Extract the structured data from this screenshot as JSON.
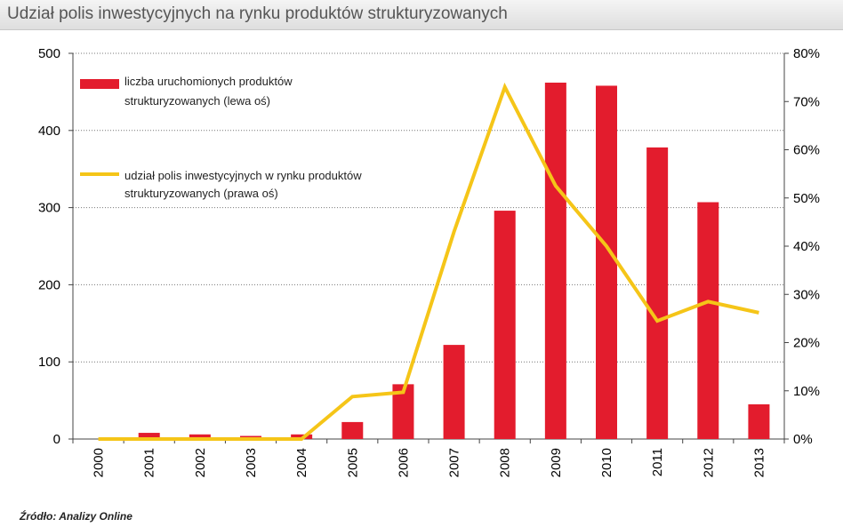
{
  "header": {
    "title": "Udział polis inwestycyjnych na rynku produktów strukturyzowanych"
  },
  "footer": {
    "source": "Źródło: Analizy Online"
  },
  "colors": {
    "bars": "#e31c2d",
    "line": "#f5c518",
    "header_bg": "#e6e6e6",
    "title": "#555555"
  },
  "chart_data": {
    "type": "bar",
    "title": "Udział polis inwestycyjnych na rynku produktów strukturyzowanych",
    "categories": [
      "2000",
      "2001",
      "2002",
      "2003",
      "2004",
      "2005",
      "2006",
      "2007",
      "2008",
      "2009",
      "2010",
      "2011",
      "2012",
      "2013"
    ],
    "series": [
      {
        "name": "liczba uruchomionych produktów strukturyzowanych (lewa oś)",
        "type": "bar",
        "axis": "left",
        "values": [
          0,
          8,
          6,
          4,
          6,
          22,
          71,
          122,
          296,
          462,
          458,
          378,
          307,
          45
        ]
      },
      {
        "name": "udział polis inwestycyjnych w rynku produktów strukturyzowanych (prawa oś)",
        "type": "line",
        "axis": "right",
        "values": [
          0,
          0,
          0,
          0,
          0,
          8.8,
          9.7,
          43,
          73,
          52.5,
          40,
          24.5,
          28.5,
          26.2
        ]
      }
    ],
    "legend": [
      [
        "liczba uruchomionych produktów",
        "strukturyzowanych (lewa oś)"
      ],
      [
        "udział polis inwestycyjnych w rynku produktów",
        "strukturyzowanych (prawa oś)"
      ]
    ],
    "y_left": {
      "lim": [
        0,
        500
      ],
      "ticks": [
        "0",
        "100",
        "200",
        "300",
        "400",
        "500"
      ]
    },
    "y_right": {
      "lim": [
        0,
        80
      ],
      "ticks": [
        "0%",
        "10%",
        "20%",
        "30%",
        "40%",
        "50%",
        "60%",
        "70%",
        "80%"
      ]
    },
    "grid": true,
    "legend_position": "top-left"
  }
}
